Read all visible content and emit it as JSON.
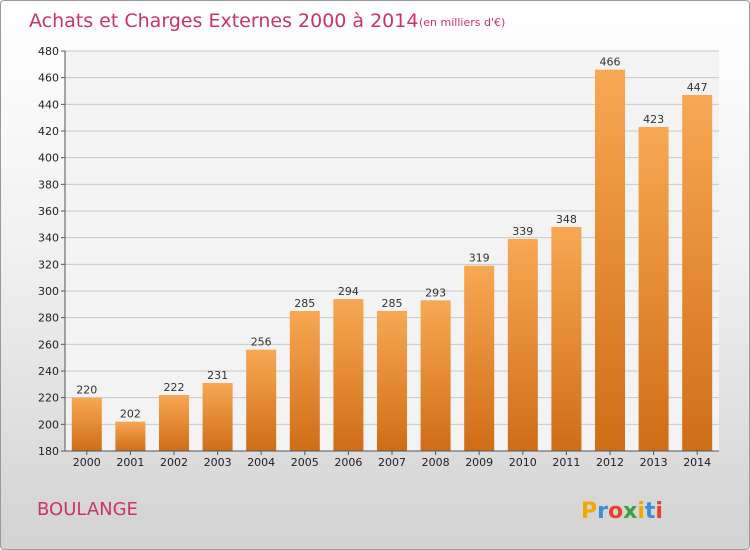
{
  "chart_data": {
    "type": "bar",
    "title": "Achats et Charges Externes 2000 à 2014",
    "subtitle": "(en milliers d'€)",
    "categories": [
      "2000",
      "2001",
      "2002",
      "2003",
      "2004",
      "2005",
      "2006",
      "2007",
      "2008",
      "2009",
      "2010",
      "2011",
      "2012",
      "2013",
      "2014"
    ],
    "values": [
      220,
      202,
      222,
      231,
      256,
      285,
      294,
      285,
      293,
      319,
      339,
      348,
      466,
      423,
      447
    ],
    "ylim": [
      180,
      480
    ],
    "yticks": [
      180,
      200,
      220,
      240,
      260,
      280,
      300,
      320,
      340,
      360,
      380,
      400,
      420,
      440,
      460,
      480
    ],
    "grid": true,
    "bar_color": "#f0892e"
  },
  "location": "BOULANGE",
  "logo": {
    "letters": [
      "P",
      "r",
      "o",
      "x",
      "i",
      "t",
      "i"
    ],
    "colors": [
      "#f2a800",
      "#3a8fd6",
      "#e8402c",
      "#3aa043",
      "#f2a800",
      "#3a8fd6",
      "#e8402c"
    ]
  }
}
